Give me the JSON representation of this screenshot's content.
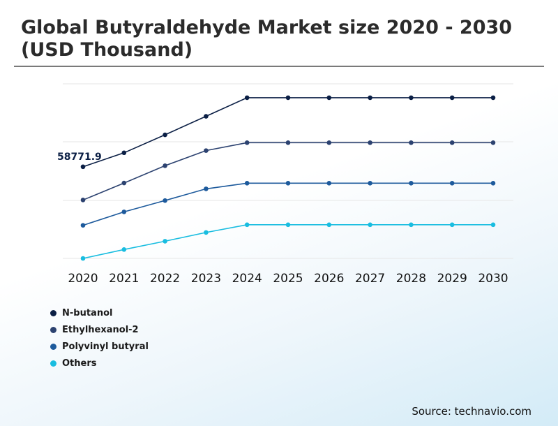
{
  "title": "Global Butyraldehyde Market size 2020 - 2030 (USD Thousand)",
  "source": "Source: technavio.com",
  "chart_data": {
    "type": "line",
    "title": "Global Butyraldehyde Market size 2020 - 2030 (USD Thousand)",
    "x": [
      "2020",
      "2021",
      "2022",
      "2023",
      "2024",
      "2025",
      "2026",
      "2027",
      "2028",
      "2029",
      "2030"
    ],
    "grid": true,
    "y_axis_labels_shown": false,
    "legend_position": "bottom-left",
    "annotations": [
      {
        "series": "N-butanol",
        "x": "2020",
        "text": "58771.9"
      }
    ],
    "series": [
      {
        "name": "N-butanol",
        "color": "#0b1f45",
        "values": [
          58771.9,
          61830,
          65760,
          69810,
          73880,
          73880,
          73880,
          73880,
          73880,
          73880,
          73880
        ]
      },
      {
        "name": "Ethylhexanol-2",
        "color": "#2c4270",
        "values": [
          51500,
          55210,
          59000,
          62310,
          64040,
          64040,
          64040,
          64040,
          64040,
          64040,
          64040
        ]
      },
      {
        "name": "Polyvinyl butyral",
        "color": "#1d5a9c",
        "values": [
          45960,
          48900,
          51380,
          53940,
          55180,
          55180,
          55180,
          55180,
          55180,
          55180,
          55180
        ]
      },
      {
        "name": "Others",
        "color": "#19bde0",
        "values": [
          38720,
          40660,
          42480,
          44390,
          46080,
          46080,
          46080,
          46080,
          46080,
          46080,
          46080
        ]
      }
    ],
    "ylim": [
      38720,
      76920
    ]
  }
}
